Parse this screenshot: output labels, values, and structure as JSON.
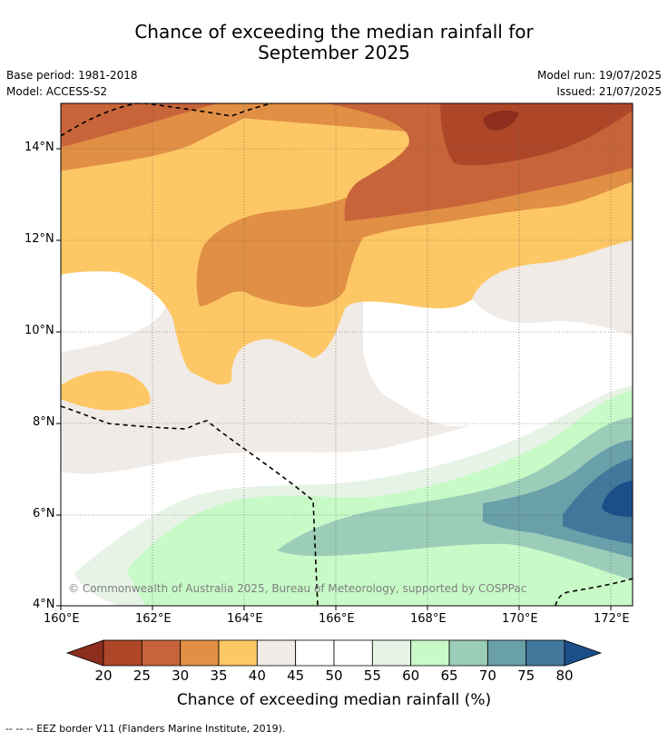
{
  "title_line1": "Chance of exceeding the median rainfall for",
  "title_line2": "September 2025",
  "base_period": "Base period: 1981-2018",
  "model": "Model: ACCESS-S2",
  "model_run": "Model run: 19/07/2025",
  "issued": "Issued: 21/07/2025",
  "copyright": "© Commonwealth of Australia 2025, Bureau of Meteorology, supported by COSPPac",
  "footer": "--  --  -- EEZ border V11 (Flanders Marine Institute, 2019).",
  "axes": {
    "x_ticks": [
      "160°E",
      "162°E",
      "164°E",
      "166°E",
      "168°E",
      "170°E",
      "172°E"
    ],
    "y_ticks": [
      "14°N",
      "12°N",
      "10°N",
      "8°N",
      "6°N",
      "4°N"
    ],
    "x_range": [
      160,
      172.5
    ],
    "y_range": [
      4,
      15
    ],
    "grid": true
  },
  "colorbar": {
    "title": "Chance of exceeding median rainfall (%)",
    "ticks": [
      "20",
      "25",
      "30",
      "35",
      "40",
      "45",
      "50",
      "55",
      "60",
      "65",
      "70",
      "75",
      "80"
    ],
    "colors": [
      "#8c2d1d",
      "#ae4728",
      "#c8643a",
      "#e08f45",
      "#fdc765",
      "#f0ebe6",
      "#ffffff",
      "#ffffff",
      "#e6f3e6",
      "#c8fac8",
      "#9bcdb9",
      "#69a0aa",
      "#41789b",
      "#1b4f8a"
    ],
    "extend": "both"
  }
}
